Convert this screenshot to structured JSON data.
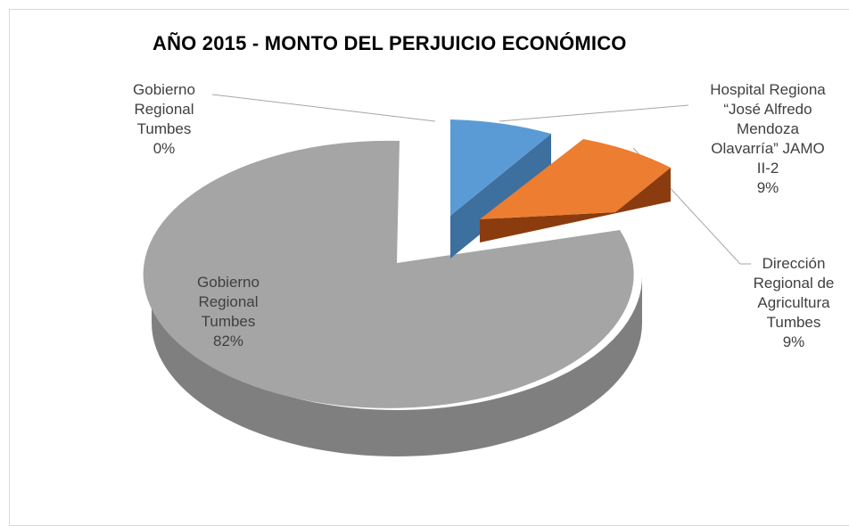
{
  "chart_data": {
    "type": "pie",
    "title": "AÑO 2015 - MONTO DEL PERJUICIO ECONÓMICO",
    "three_d": true,
    "slices": [
      {
        "label_lines": [
          "Gobierno",
          "Regional",
          "Tumbes"
        ],
        "value_label": "82%",
        "value": 82,
        "color": "#a5a5a5",
        "color_side": "#7f7f7f"
      },
      {
        "label_lines": [
          "Gobierno",
          "Regional",
          "Tumbes"
        ],
        "value_label": "0%",
        "value": 0,
        "color": "#ffc000",
        "color_side": "#bf9000"
      },
      {
        "label_lines": [
          "Hospital Regiona",
          "“José Alfredo",
          "Mendoza",
          "Olavarría” JAMO",
          "II-2"
        ],
        "value_label": "9%",
        "value": 9,
        "color": "#5b9bd5",
        "color_side": "#3d6f9f"
      },
      {
        "label_lines": [
          "Dirección",
          "Regional de",
          "Agricultura",
          "Tumbes"
        ],
        "value_label": "9%",
        "value": 9,
        "color": "#ed7d31",
        "color_side": "#8a3c0f"
      }
    ]
  }
}
